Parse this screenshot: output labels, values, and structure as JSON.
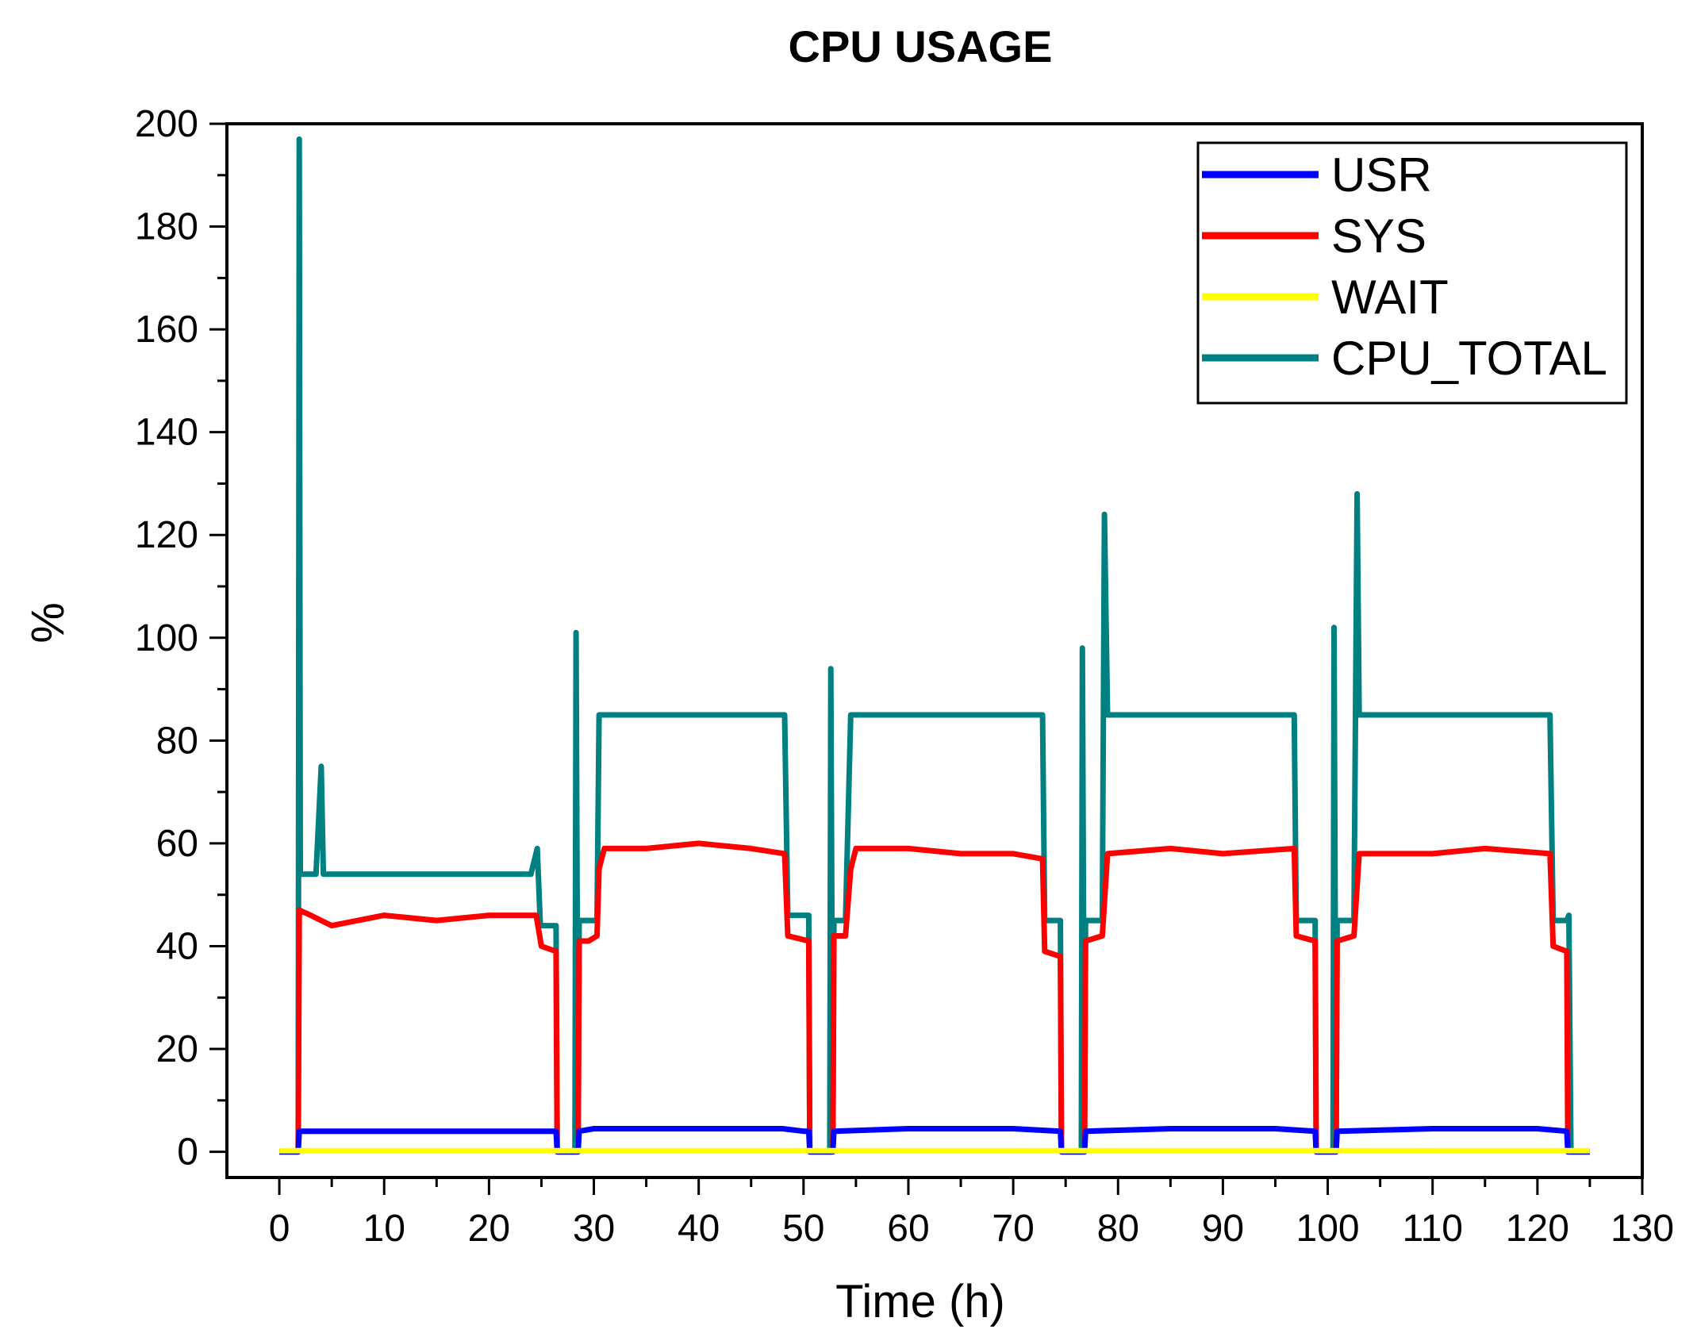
{
  "chart_data": {
    "type": "line",
    "title": "CPU USAGE",
    "xlabel": "Time (h)",
    "ylabel": "%",
    "xlim": [
      -5,
      130
    ],
    "ylim": [
      -5,
      200
    ],
    "x_ticks": [
      0,
      10,
      20,
      30,
      40,
      50,
      60,
      70,
      80,
      90,
      100,
      110,
      120,
      130
    ],
    "x_tick_labels": [
      "0",
      "10",
      "20",
      "30",
      "40",
      "50",
      "60",
      "70",
      "80",
      "90",
      "100",
      "110",
      "120",
      "130"
    ],
    "y_ticks": [
      0,
      20,
      40,
      60,
      80,
      100,
      120,
      140,
      160,
      180,
      200
    ],
    "y_tick_labels": [
      "0",
      "20",
      "40",
      "60",
      "80",
      "100",
      "120",
      "140",
      "160",
      "180",
      "200"
    ],
    "grid": false,
    "legend_position": "top-right",
    "series": [
      {
        "name": "USR",
        "color": "#0000ff",
        "x": [
          0,
          1.8,
          1.9,
          2.5,
          10,
          20,
          26.4,
          26.5,
          28.5,
          28.6,
          30,
          40,
          48,
          50,
          50.5,
          50.6,
          52.8,
          52.9,
          60,
          70,
          74.5,
          74.6,
          76.8,
          76.9,
          85,
          95,
          98.8,
          98.9,
          100.8,
          100.9,
          110,
          120,
          122.8,
          122.9,
          125
        ],
        "y": [
          0,
          0,
          4,
          4,
          4,
          4,
          4,
          0,
          0,
          4,
          4.5,
          4.5,
          4.5,
          4,
          4,
          0,
          0,
          4,
          4.5,
          4.5,
          4,
          0,
          0,
          4,
          4.5,
          4.5,
          4,
          0,
          0,
          4,
          4.5,
          4.5,
          4,
          0,
          0
        ]
      },
      {
        "name": "SYS",
        "color": "#ff0000",
        "x": [
          0,
          1.8,
          1.9,
          3,
          5,
          10,
          15,
          20,
          24.5,
          25,
          26.4,
          26.5,
          28.5,
          28.6,
          29.5,
          30.3,
          30.5,
          31,
          35,
          40,
          45,
          48.2,
          48.5,
          50.5,
          50.6,
          52.8,
          52.9,
          54,
          54.5,
          55,
          60,
          65,
          70,
          72.8,
          73,
          74.5,
          74.6,
          76.8,
          76.9,
          78.5,
          79,
          85,
          90,
          96.8,
          97,
          98.8,
          98.9,
          100.8,
          100.9,
          102.5,
          103,
          110,
          115,
          121.2,
          121.5,
          122.8,
          122.9,
          125
        ],
        "y": [
          0,
          0,
          47,
          46,
          44,
          46,
          45,
          46,
          46,
          40,
          39,
          0,
          0,
          41,
          41,
          42,
          55,
          59,
          59,
          60,
          59,
          58,
          42,
          41,
          0,
          0,
          42,
          42,
          55,
          59,
          59,
          58,
          58,
          57,
          39,
          38,
          0,
          0,
          41,
          42,
          58,
          59,
          58,
          59,
          42,
          41,
          0,
          0,
          41,
          42,
          58,
          58,
          59,
          58,
          40,
          39,
          0,
          0
        ]
      },
      {
        "name": "WAIT",
        "color": "#ffff00",
        "x": [
          0,
          125
        ],
        "y": [
          0.2,
          0.2
        ]
      },
      {
        "name": "CPU_TOTAL",
        "color": "#008080",
        "x": [
          0,
          1.8,
          1.9,
          2.0,
          2.2,
          3.5,
          4.0,
          4.2,
          5,
          10,
          15,
          20,
          24,
          24.6,
          24.9,
          25.2,
          26.4,
          26.5,
          28.2,
          28.3,
          28.5,
          28.6,
          29.5,
          30.3,
          30.5,
          31,
          35,
          40,
          44,
          48.2,
          48.5,
          50.5,
          50.6,
          52.5,
          52.6,
          52.8,
          52.9,
          54,
          54.5,
          55,
          60,
          65,
          70,
          72.8,
          73,
          74.5,
          74.6,
          76.5,
          76.6,
          76.8,
          76.9,
          78.5,
          78.7,
          79,
          85,
          90,
          96.8,
          97,
          98.8,
          98.9,
          100.5,
          100.6,
          100.8,
          100.9,
          102.5,
          102.8,
          103,
          110,
          115,
          121.2,
          121.5,
          122.8,
          123,
          123.2,
          125
        ],
        "y": [
          0,
          0,
          197,
          54,
          54,
          54,
          75,
          54,
          54,
          54,
          54,
          54,
          54,
          59,
          44,
          44,
          44,
          0,
          0,
          101,
          0,
          45,
          45,
          45,
          85,
          85,
          85,
          85,
          85,
          85,
          46,
          46,
          0,
          0,
          94,
          0,
          45,
          45,
          85,
          85,
          85,
          85,
          85,
          85,
          45,
          45,
          0,
          0,
          98,
          0,
          45,
          45,
          124,
          85,
          85,
          85,
          85,
          45,
          45,
          0,
          0,
          102,
          0,
          45,
          45,
          128,
          85,
          85,
          85,
          85,
          45,
          45,
          46,
          0,
          0
        ]
      }
    ]
  }
}
